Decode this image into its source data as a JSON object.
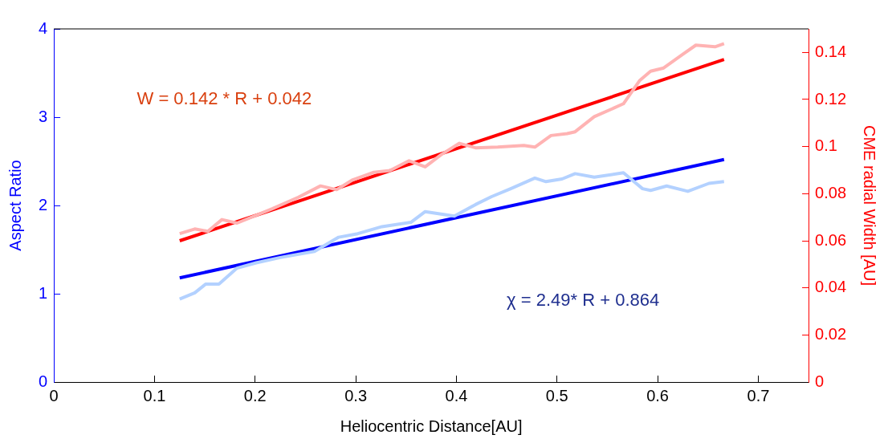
{
  "chart_data": {
    "type": "line",
    "xlabel": "Heliocentric Distance[AU]",
    "ylabel": "Aspect Ratio",
    "y2label": "CME radial Width [AU]",
    "xlim": [
      0,
      0.75
    ],
    "xticks": [
      0,
      0.1,
      0.2,
      0.3,
      0.4,
      0.5,
      0.6,
      0.7
    ],
    "ylim": [
      0,
      4
    ],
    "yticks": [
      0,
      1,
      2,
      3,
      4
    ],
    "y2lim": [
      0,
      0.15
    ],
    "y2ticks": [
      0,
      0.02,
      0.04,
      0.06,
      0.08,
      0.1,
      0.12,
      0.14
    ],
    "grid": false,
    "legend": false,
    "marker": "none",
    "line_style": "solid",
    "annotations": [
      "W = 0.142 * R + 0.042",
      "χ = 2.49* R + 0.864"
    ],
    "series": [
      {
        "color": "#b3d1ff",
        "axis": "y",
        "x": [
          0.125,
          0.14,
          0.151,
          0.164,
          0.182,
          0.201,
          0.225,
          0.259,
          0.283,
          0.302,
          0.326,
          0.355,
          0.369,
          0.398,
          0.419,
          0.435,
          0.454,
          0.478,
          0.489,
          0.505,
          0.518,
          0.537,
          0.566,
          0.585,
          0.593,
          0.609,
          0.63,
          0.651,
          0.666
        ],
        "values": [
          0.94,
          1.01,
          1.11,
          1.11,
          1.29,
          1.35,
          1.41,
          1.48,
          1.64,
          1.68,
          1.76,
          1.81,
          1.93,
          1.88,
          2.01,
          2.1,
          2.19,
          2.31,
          2.27,
          2.3,
          2.36,
          2.32,
          2.37,
          2.19,
          2.17,
          2.22,
          2.16,
          2.25,
          2.27
        ]
      },
      {
        "color": "#0000ff",
        "axis": "y",
        "x": [
          0.125,
          0.666
        ],
        "values": [
          1.18,
          2.52
        ]
      },
      {
        "color": "#ffb3b3",
        "axis": "y2",
        "x": [
          0.125,
          0.14,
          0.153,
          0.167,
          0.182,
          0.217,
          0.243,
          0.265,
          0.281,
          0.297,
          0.318,
          0.334,
          0.353,
          0.369,
          0.385,
          0.403,
          0.419,
          0.441,
          0.467,
          0.478,
          0.494,
          0.51,
          0.518,
          0.537,
          0.566,
          0.582,
          0.593,
          0.606,
          0.625,
          0.638,
          0.657,
          0.666
        ],
        "values": [
          0.063,
          0.065,
          0.064,
          0.069,
          0.0675,
          0.0736,
          0.0785,
          0.0833,
          0.0817,
          0.0859,
          0.0891,
          0.0898,
          0.094,
          0.0914,
          0.0966,
          0.1014,
          0.0995,
          0.0998,
          0.1005,
          0.0998,
          0.1047,
          0.1055,
          0.1063,
          0.1127,
          0.1182,
          0.128,
          0.132,
          0.1334,
          0.1392,
          0.1431,
          0.1424,
          0.1437
        ]
      },
      {
        "color": "#ff0000",
        "axis": "y2",
        "x": [
          0.125,
          0.666
        ],
        "values": [
          0.06,
          0.137
        ]
      }
    ]
  }
}
